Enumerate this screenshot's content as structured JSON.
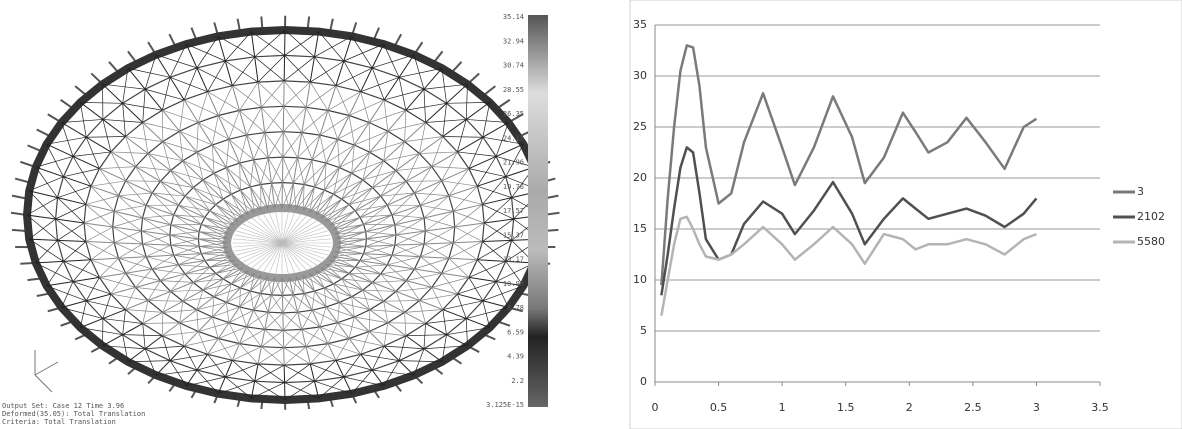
{
  "fem_view": {
    "colorbar_labels": [
      "35.14",
      "32.94",
      "30.74",
      "28.55",
      "26.35",
      "24.15",
      "21.96",
      "19.76",
      "17.57",
      "15.37",
      "13.17",
      "10.98",
      "8.78",
      "6.59",
      "4.39",
      "2.2",
      "3.125E-15"
    ],
    "caption": [
      "Output Set: Case 12 Time 3.96",
      "Deformed(35.05): Total Translation",
      "Criteria: Total Translation"
    ]
  },
  "chart_data": {
    "type": "line",
    "x": [
      0.05,
      0.1,
      0.15,
      0.2,
      0.25,
      0.3,
      0.35,
      0.4,
      0.5,
      0.6,
      0.7,
      0.85,
      1.0,
      1.1,
      1.25,
      1.4,
      1.55,
      1.65,
      1.8,
      1.95,
      2.05,
      2.15,
      2.3,
      2.45,
      2.6,
      2.75,
      2.9,
      3.0
    ],
    "series": [
      {
        "name": "3",
        "color": "#7a7a7a",
        "values": [
          9.5,
          18,
          25,
          30.5,
          33,
          32.8,
          29,
          23,
          17.5,
          18.5,
          23.5,
          28.3,
          23,
          19.3,
          23,
          28,
          24,
          19.5,
          22,
          26.4,
          24.5,
          22.5,
          23.5,
          25.9,
          23.5,
          20.9,
          25,
          25.8
        ]
      },
      {
        "name": "2102",
        "color": "#505050",
        "values": [
          8.5,
          12.5,
          17,
          21,
          23,
          22.5,
          18.5,
          14,
          12,
          12.5,
          15.5,
          17.7,
          16.5,
          14.5,
          16.8,
          19.6,
          16.5,
          13.5,
          16,
          18,
          17,
          16,
          16.5,
          17,
          16.3,
          15.2,
          16.5,
          18
        ]
      },
      {
        "name": "5580",
        "color": "#b4b4b4",
        "values": [
          6.5,
          10,
          13.5,
          16,
          16.2,
          15,
          13.5,
          12.3,
          12,
          12.5,
          13.5,
          15.2,
          13.5,
          12,
          13.5,
          15.2,
          13.5,
          11.6,
          14.5,
          14,
          13,
          13.5,
          13.5,
          14,
          13.5,
          12.5,
          14,
          14.5
        ]
      }
    ],
    "xlim": [
      0,
      3.5
    ],
    "xticks": [
      0,
      0.5,
      1,
      1.5,
      2,
      2.5,
      3,
      3.5
    ],
    "ylim": [
      0,
      35
    ],
    "yticks": [
      0,
      5,
      10,
      15,
      20,
      25,
      30,
      35
    ],
    "grid": true,
    "legend": "right"
  }
}
